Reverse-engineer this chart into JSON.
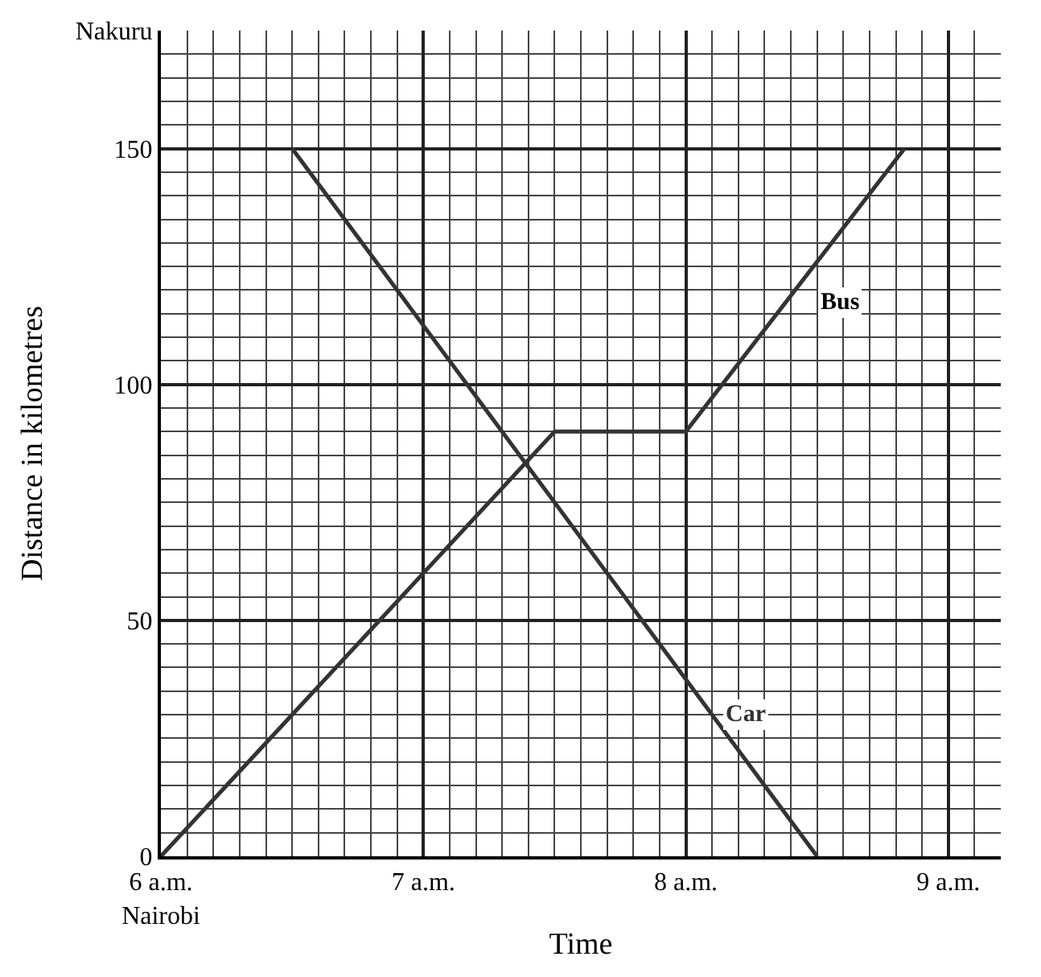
{
  "chart_data": {
    "type": "line",
    "xlabel": "Time",
    "ylabel": "Distance in kilometres",
    "xlim": [
      6,
      9.2
    ],
    "ylim": [
      0,
      175
    ],
    "xticks": [
      {
        "value": 6,
        "label": "6 a.m.\nNairobi"
      },
      {
        "value": 7,
        "label": "7 a.m."
      },
      {
        "value": 8,
        "label": "8 a.m."
      },
      {
        "value": 9,
        "label": "9 a.m."
      }
    ],
    "yticks": [
      0,
      50,
      100,
      150,
      {
        "value": 175,
        "label": "Nakuru"
      }
    ],
    "series": [
      {
        "name": "Bus",
        "color": "#333333",
        "x": [
          6,
          7.5,
          8,
          8.8333
        ],
        "values": [
          0,
          90,
          90,
          150
        ]
      },
      {
        "name": "Car",
        "color": "#333333",
        "x": [
          6.5,
          8.5
        ],
        "values": [
          150,
          0
        ]
      }
    ],
    "grid": true,
    "legend": false,
    "marker": "none",
    "line_style": "solid"
  }
}
